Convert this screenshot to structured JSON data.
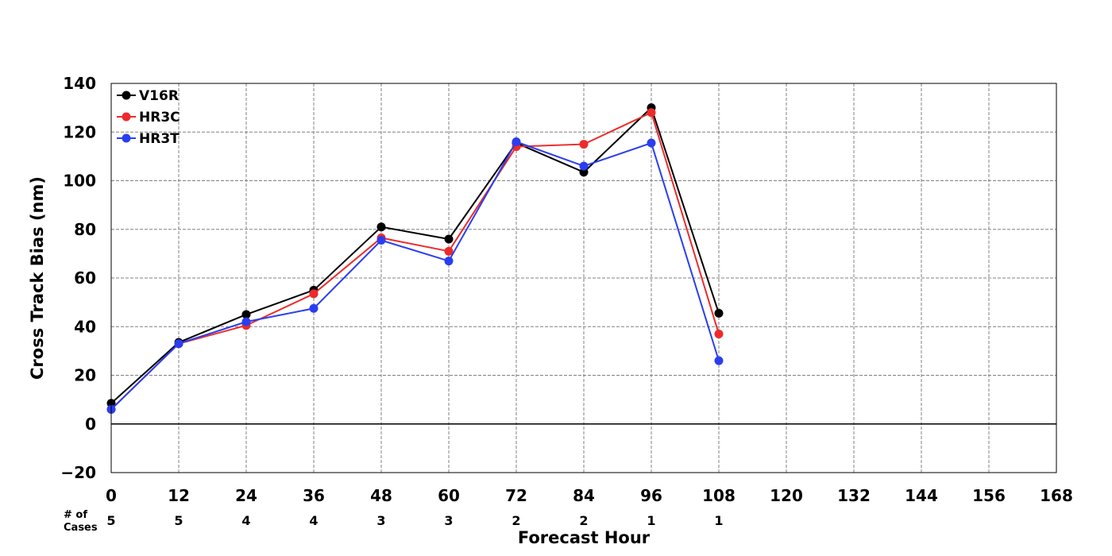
{
  "chart_data": {
    "type": "line",
    "title": "",
    "xlabel": "Forecast Hour",
    "ylabel": "Cross Track Bias (nm)",
    "xlim": [
      0,
      168
    ],
    "ylim": [
      -20,
      140
    ],
    "x_ticks": [
      0,
      12,
      24,
      36,
      48,
      60,
      72,
      84,
      96,
      108,
      120,
      132,
      144,
      156,
      168
    ],
    "y_ticks": [
      -20,
      0,
      20,
      40,
      60,
      80,
      100,
      120,
      140
    ],
    "y_tick_labels": [
      "−20",
      "0",
      "20",
      "40",
      "60",
      "80",
      "100",
      "120",
      "140"
    ],
    "grid": true,
    "zero_line": true,
    "legend_position": "top-left",
    "series": [
      {
        "name": "V16R",
        "color": "#000000",
        "x": [
          0,
          12,
          24,
          36,
          48,
          60,
          72,
          84,
          96,
          108
        ],
        "values": [
          8.5,
          33.5,
          45,
          55,
          81,
          76,
          115.5,
          103.5,
          130,
          45.5
        ]
      },
      {
        "name": "HR3C",
        "color": "#ee2a2a",
        "x": [
          0,
          12,
          24,
          36,
          48,
          60,
          72,
          84,
          96,
          108
        ],
        "values": [
          6,
          33,
          40.5,
          53.5,
          76.5,
          71,
          114,
          115,
          128,
          37
        ]
      },
      {
        "name": "HR3T",
        "color": "#2a3ef0",
        "x": [
          0,
          12,
          24,
          36,
          48,
          60,
          72,
          84,
          96,
          108
        ],
        "values": [
          6,
          33,
          42,
          47.5,
          75.5,
          67,
          116,
          106,
          115.5,
          26
        ]
      }
    ],
    "cases_label_line1": "# of",
    "cases_label_line2": "Cases",
    "cases": [
      {
        "x": 0,
        "n": "5"
      },
      {
        "x": 12,
        "n": "5"
      },
      {
        "x": 24,
        "n": "4"
      },
      {
        "x": 36,
        "n": "4"
      },
      {
        "x": 48,
        "n": "3"
      },
      {
        "x": 60,
        "n": "3"
      },
      {
        "x": 72,
        "n": "2"
      },
      {
        "x": 84,
        "n": "2"
      },
      {
        "x": 96,
        "n": "1"
      },
      {
        "x": 108,
        "n": "1"
      }
    ]
  }
}
